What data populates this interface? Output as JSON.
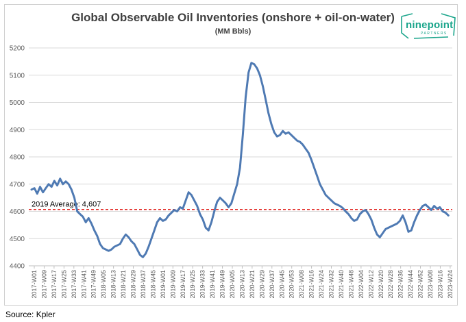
{
  "chart_data": {
    "type": "line",
    "title": "Global Observable Oil Inventories (onshore + oil-on-water)",
    "subtitle": "(MM Bbls)",
    "xlabel": "",
    "ylabel": "",
    "ylim": [
      4400,
      5200
    ],
    "y_ticks": [
      4400,
      4500,
      4600,
      4700,
      4800,
      4900,
      5000,
      5100,
      5200
    ],
    "x_ticks": [
      "2017-W01",
      "2017-W09",
      "2017-W17",
      "2017-W25",
      "2017-W33",
      "2017-W41",
      "2017-W49",
      "2018-W05",
      "2018-W13",
      "2018-W21",
      "2018-W29",
      "2018-W37",
      "2018-W45",
      "2019-W01",
      "2019-W09",
      "2019-W17",
      "2019-W25",
      "2019-W33",
      "2019-W41",
      "2019-W49",
      "2020-W05",
      "2020-W13",
      "2020-W21",
      "2020-W29",
      "2020-W37",
      "2020-W45",
      "2020-W53",
      "2021-W08",
      "2021-W16",
      "2021-W24",
      "2021-W32",
      "2021-W40",
      "2021-W48",
      "2022-W04",
      "2022-W12",
      "2022-W20",
      "2022-W28",
      "2022-W36",
      "2022-W44",
      "2022-W52",
      "2023-W08",
      "2023-W16",
      "2023-W24"
    ],
    "grid": true,
    "legend": "none",
    "series": [
      {
        "color": "#4f7ab3",
        "points": [
          [
            0,
            4680
          ],
          [
            0.5,
            4685
          ],
          [
            1,
            4665
          ],
          [
            1.5,
            4690
          ],
          [
            2,
            4670
          ],
          [
            2.5,
            4685
          ],
          [
            3,
            4700
          ],
          [
            3.5,
            4690
          ],
          [
            4,
            4712
          ],
          [
            4.5,
            4695
          ],
          [
            5,
            4720
          ],
          [
            5.5,
            4700
          ],
          [
            6,
            4710
          ],
          [
            6.5,
            4700
          ],
          [
            7,
            4680
          ],
          [
            7.5,
            4650
          ],
          [
            8,
            4600
          ],
          [
            8.5,
            4590
          ],
          [
            9,
            4580
          ],
          [
            9.5,
            4560
          ],
          [
            10,
            4575
          ],
          [
            10.5,
            4555
          ],
          [
            11,
            4530
          ],
          [
            11.5,
            4510
          ],
          [
            12,
            4480
          ],
          [
            12.5,
            4465
          ],
          [
            13,
            4460
          ],
          [
            13.5,
            4455
          ],
          [
            14,
            4460
          ],
          [
            14.5,
            4470
          ],
          [
            15,
            4475
          ],
          [
            15.5,
            4480
          ],
          [
            16,
            4500
          ],
          [
            16.5,
            4515
          ],
          [
            17,
            4505
          ],
          [
            17.5,
            4490
          ],
          [
            18,
            4480
          ],
          [
            18.5,
            4460
          ],
          [
            19,
            4440
          ],
          [
            19.5,
            4432
          ],
          [
            20,
            4445
          ],
          [
            20.5,
            4470
          ],
          [
            21,
            4500
          ],
          [
            21.5,
            4530
          ],
          [
            22,
            4560
          ],
          [
            22.5,
            4575
          ],
          [
            23,
            4565
          ],
          [
            23.5,
            4570
          ],
          [
            24,
            4585
          ],
          [
            24.5,
            4595
          ],
          [
            25,
            4605
          ],
          [
            25.5,
            4600
          ],
          [
            26,
            4615
          ],
          [
            26.5,
            4610
          ],
          [
            27,
            4640
          ],
          [
            27.5,
            4670
          ],
          [
            28,
            4660
          ],
          [
            28.5,
            4640
          ],
          [
            29,
            4620
          ],
          [
            29.5,
            4590
          ],
          [
            30,
            4570
          ],
          [
            30.5,
            4540
          ],
          [
            31,
            4530
          ],
          [
            31.5,
            4560
          ],
          [
            32,
            4600
          ],
          [
            32.5,
            4635
          ],
          [
            33,
            4650
          ],
          [
            33.5,
            4640
          ],
          [
            34,
            4630
          ],
          [
            34.5,
            4615
          ],
          [
            35,
            4630
          ],
          [
            35.5,
            4665
          ],
          [
            36,
            4700
          ],
          [
            36.5,
            4760
          ],
          [
            37,
            4880
          ],
          [
            37.5,
            5020
          ],
          [
            38,
            5110
          ],
          [
            38.5,
            5145
          ],
          [
            39,
            5140
          ],
          [
            39.5,
            5125
          ],
          [
            40,
            5100
          ],
          [
            40.5,
            5060
          ],
          [
            41,
            5010
          ],
          [
            41.5,
            4960
          ],
          [
            42,
            4920
          ],
          [
            42.5,
            4890
          ],
          [
            43,
            4875
          ],
          [
            43.5,
            4880
          ],
          [
            44,
            4895
          ],
          [
            44.5,
            4885
          ],
          [
            45,
            4890
          ],
          [
            45.5,
            4880
          ],
          [
            46,
            4870
          ],
          [
            46.5,
            4860
          ],
          [
            47,
            4855
          ],
          [
            47.5,
            4845
          ],
          [
            48,
            4830
          ],
          [
            48.5,
            4815
          ],
          [
            49,
            4790
          ],
          [
            49.5,
            4760
          ],
          [
            50,
            4730
          ],
          [
            50.5,
            4700
          ],
          [
            51,
            4680
          ],
          [
            51.5,
            4660
          ],
          [
            52,
            4650
          ],
          [
            52.5,
            4640
          ],
          [
            53,
            4630
          ],
          [
            53.5,
            4625
          ],
          [
            54,
            4620
          ],
          [
            54.5,
            4612
          ],
          [
            55,
            4600
          ],
          [
            55.5,
            4590
          ],
          [
            56,
            4575
          ],
          [
            56.5,
            4565
          ],
          [
            57,
            4570
          ],
          [
            57.5,
            4590
          ],
          [
            58,
            4600
          ],
          [
            58.5,
            4605
          ],
          [
            59,
            4590
          ],
          [
            59.5,
            4570
          ],
          [
            60,
            4540
          ],
          [
            60.5,
            4515
          ],
          [
            61,
            4505
          ],
          [
            61.5,
            4520
          ],
          [
            62,
            4535
          ],
          [
            62.5,
            4540
          ],
          [
            63,
            4545
          ],
          [
            63.5,
            4550
          ],
          [
            64,
            4555
          ],
          [
            64.5,
            4565
          ],
          [
            65,
            4585
          ],
          [
            65.5,
            4560
          ],
          [
            66,
            4525
          ],
          [
            66.5,
            4530
          ],
          [
            67,
            4560
          ],
          [
            67.5,
            4585
          ],
          [
            68,
            4605
          ],
          [
            68.5,
            4620
          ],
          [
            69,
            4625
          ],
          [
            69.5,
            4615
          ],
          [
            70,
            4605
          ],
          [
            70.5,
            4620
          ],
          [
            71,
            4610
          ],
          [
            71.5,
            4615
          ],
          [
            72,
            4600
          ],
          [
            72.5,
            4595
          ],
          [
            73,
            4585
          ]
        ]
      }
    ],
    "annotations": [
      {
        "type": "hline",
        "y": 4607,
        "color": "#e0201c",
        "style": "dashed",
        "label": "2019 Average: 4,607"
      }
    ]
  },
  "branding": {
    "logo_text": "ninepoint",
    "logo_subtext": "PARTNERS",
    "logo_color": "#1aa58b"
  },
  "source_text": "Source: Kpler"
}
